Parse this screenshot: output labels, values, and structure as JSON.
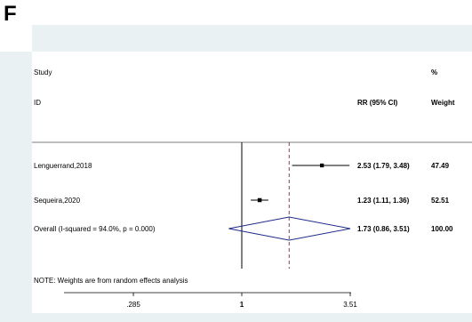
{
  "panel_label": "F",
  "colors": {
    "background": "#eaf1f3",
    "plot_area": "#ffffff",
    "diamond": "#1f2a8a",
    "reference_line": "#000000",
    "overall_line": "#9b1c3c",
    "ci_line": "#000000"
  },
  "chart_data": {
    "type": "forest",
    "x_scale": "log",
    "header": {
      "study_line1": "Study",
      "study_line2": "ID",
      "rr_header": "RR (95% CI)",
      "weight_line1": "%",
      "weight_line2": "Weight"
    },
    "studies": [
      {
        "label": "Lenguerrand,2018",
        "rr": 2.53,
        "lower": 1.79,
        "upper": 3.48,
        "rr_text": "2.53 (1.79, 3.48)",
        "weight": 47.49,
        "weight_text": "47.49"
      },
      {
        "label": "Sequeira,2020",
        "rr": 1.23,
        "lower": 1.11,
        "upper": 1.36,
        "rr_text": "1.23 (1.11, 1.36)",
        "weight": 52.51,
        "weight_text": "52.51"
      }
    ],
    "overall": {
      "label": "Overall  (I-squared = 94.0%, p = 0.000)",
      "rr": 1.73,
      "lower": 0.86,
      "upper": 3.51,
      "rr_text": "1.73 (0.86, 3.51)",
      "weight_text": "100.00"
    },
    "note": "NOTE: Weights are from random effects analysis",
    "reference_value": 1,
    "x_ticks": [
      {
        "value": 0.285,
        "label": ".285"
      },
      {
        "value": 1,
        "label": "1"
      },
      {
        "value": 3.51,
        "label": "3.51"
      }
    ]
  }
}
